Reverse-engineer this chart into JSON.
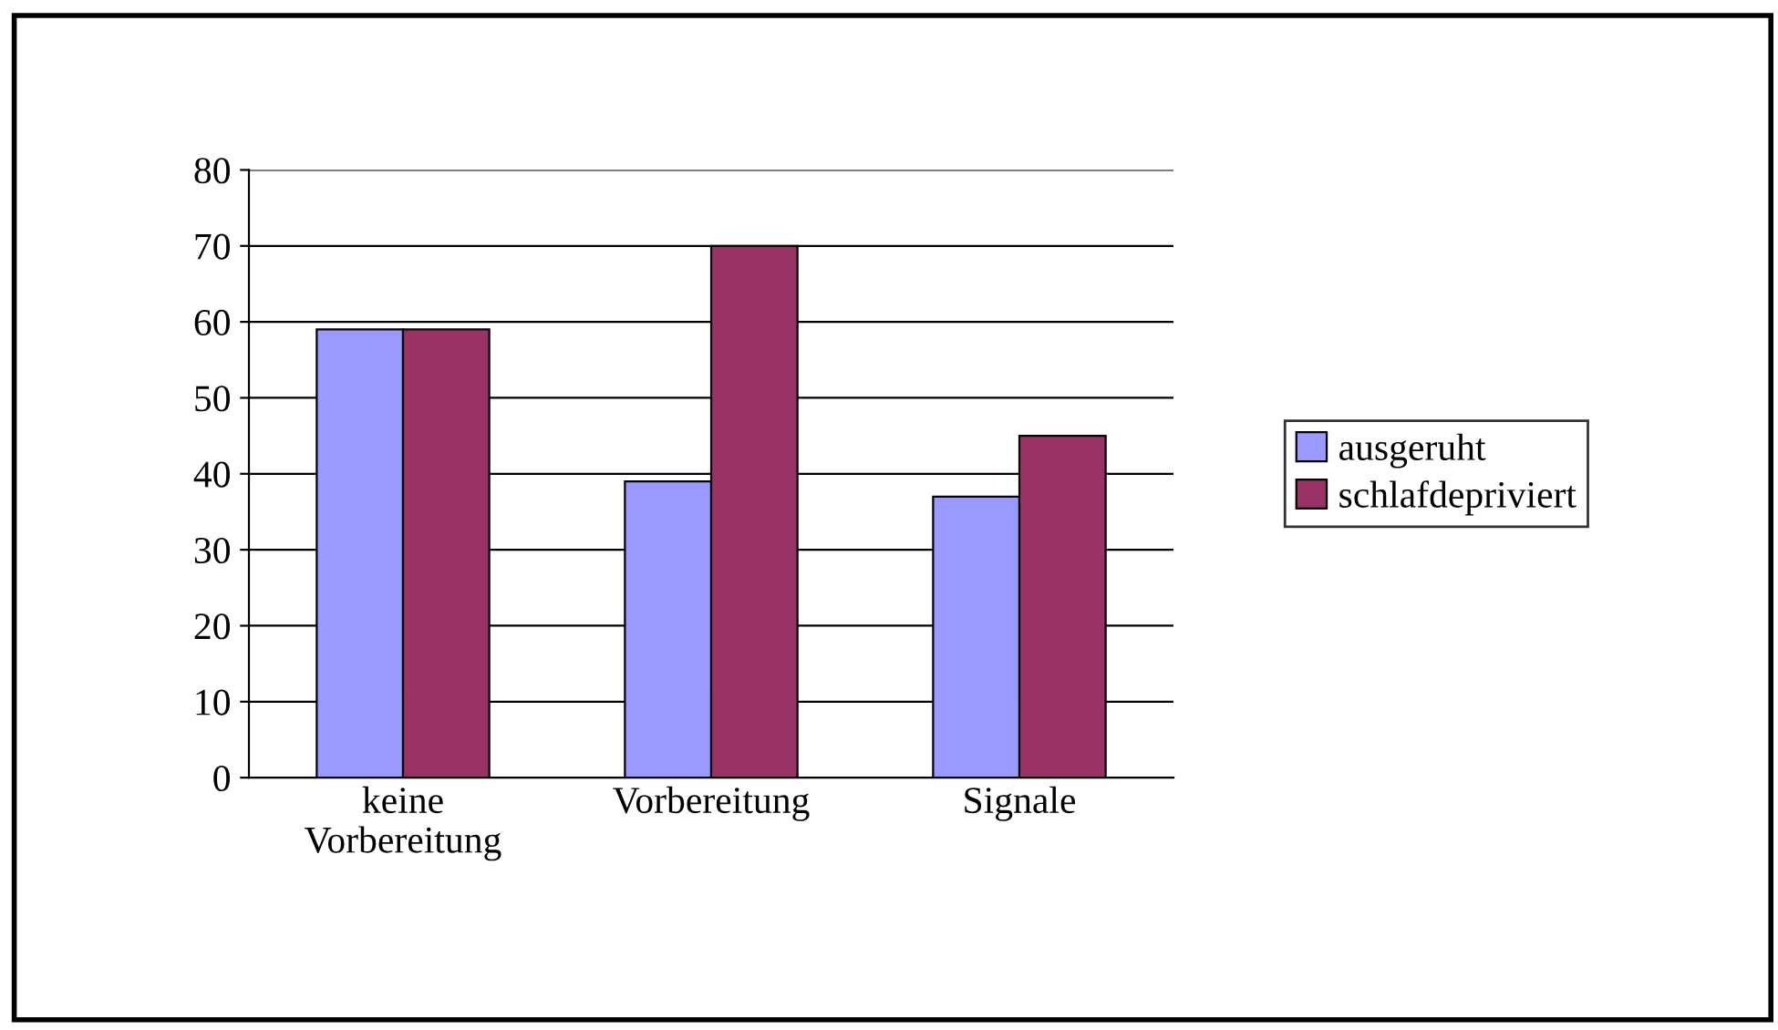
{
  "chart_data": {
    "type": "bar",
    "categories": [
      "keine\nVorbereitung",
      "Vorbereitung",
      "Signale"
    ],
    "series": [
      {
        "name": "ausgeruht",
        "color": "#9999ff",
        "values": [
          59,
          39,
          37
        ]
      },
      {
        "name": "schlafdepriviert",
        "color": "#993366",
        "values": [
          59,
          70,
          45
        ]
      }
    ],
    "ylim": [
      0,
      80
    ],
    "yticks": [
      0,
      10,
      20,
      30,
      40,
      50,
      60,
      70,
      80
    ],
    "grid": "y",
    "legend": "right"
  }
}
